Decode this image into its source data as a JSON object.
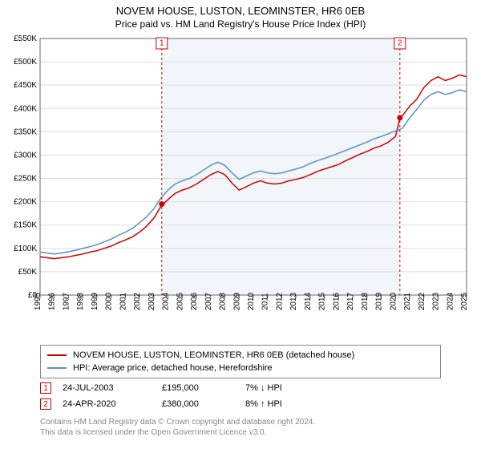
{
  "title_line1": "NOVEM HOUSE, LUSTON, LEOMINSTER, HR6 0EB",
  "title_line2": "Price paid vs. HM Land Registry's House Price Index (HPI)",
  "chart": {
    "type": "line",
    "background_color": "#ffffff",
    "plot_shaded_color": "#e8eef6",
    "grid_color": "#dddddd",
    "axis_color": "#666666",
    "x_axis": {
      "min_year": 1995,
      "max_year": 2025,
      "tick_years": [
        1995,
        1996,
        1997,
        1998,
        1999,
        2000,
        2001,
        2002,
        2003,
        2004,
        2005,
        2006,
        2007,
        2008,
        2009,
        2010,
        2011,
        2012,
        2013,
        2014,
        2015,
        2016,
        2017,
        2018,
        2019,
        2020,
        2021,
        2022,
        2023,
        2024,
        2025
      ],
      "tick_fontsize": 10,
      "label_rotation": -90
    },
    "y_axis": {
      "min": 0,
      "max": 550000,
      "tick_step": 50000,
      "tick_labels": [
        "£0",
        "£50K",
        "£100K",
        "£150K",
        "£200K",
        "£250K",
        "£300K",
        "£350K",
        "£400K",
        "£450K",
        "£500K",
        "£550K"
      ],
      "tick_fontsize": 10
    },
    "series": [
      {
        "name": "NOVEM HOUSE, LUSTON, LEOMINSTER, HR6 0EB (detached house)",
        "color": "#cc0000",
        "line_width": 1.5,
        "points": [
          [
            1995.0,
            82000
          ],
          [
            1995.5,
            80000
          ],
          [
            1996.0,
            78000
          ],
          [
            1996.5,
            80000
          ],
          [
            1997.0,
            82000
          ],
          [
            1997.5,
            85000
          ],
          [
            1998.0,
            88000
          ],
          [
            1998.5,
            92000
          ],
          [
            1999.0,
            95000
          ],
          [
            1999.5,
            100000
          ],
          [
            2000.0,
            105000
          ],
          [
            2000.5,
            112000
          ],
          [
            2001.0,
            118000
          ],
          [
            2001.5,
            125000
          ],
          [
            2002.0,
            135000
          ],
          [
            2002.5,
            148000
          ],
          [
            2003.0,
            165000
          ],
          [
            2003.5,
            190000
          ],
          [
            2004.0,
            205000
          ],
          [
            2004.5,
            218000
          ],
          [
            2005.0,
            225000
          ],
          [
            2005.5,
            230000
          ],
          [
            2006.0,
            238000
          ],
          [
            2006.5,
            248000
          ],
          [
            2007.0,
            258000
          ],
          [
            2007.5,
            265000
          ],
          [
            2008.0,
            258000
          ],
          [
            2008.5,
            240000
          ],
          [
            2009.0,
            225000
          ],
          [
            2009.5,
            232000
          ],
          [
            2010.0,
            240000
          ],
          [
            2010.5,
            245000
          ],
          [
            2011.0,
            240000
          ],
          [
            2011.5,
            238000
          ],
          [
            2012.0,
            240000
          ],
          [
            2012.5,
            245000
          ],
          [
            2013.0,
            248000
          ],
          [
            2013.5,
            252000
          ],
          [
            2014.0,
            258000
          ],
          [
            2014.5,
            265000
          ],
          [
            2015.0,
            270000
          ],
          [
            2015.5,
            275000
          ],
          [
            2016.0,
            280000
          ],
          [
            2016.5,
            288000
          ],
          [
            2017.0,
            295000
          ],
          [
            2017.5,
            302000
          ],
          [
            2018.0,
            308000
          ],
          [
            2018.5,
            315000
          ],
          [
            2019.0,
            320000
          ],
          [
            2019.5,
            328000
          ],
          [
            2020.0,
            340000
          ],
          [
            2020.3,
            378000
          ],
          [
            2020.5,
            385000
          ],
          [
            2021.0,
            405000
          ],
          [
            2021.5,
            420000
          ],
          [
            2022.0,
            445000
          ],
          [
            2022.5,
            460000
          ],
          [
            2023.0,
            468000
          ],
          [
            2023.5,
            460000
          ],
          [
            2024.0,
            465000
          ],
          [
            2024.5,
            472000
          ],
          [
            2025.0,
            468000
          ]
        ]
      },
      {
        "name": "HPI: Average price, detached house, Herefordshire",
        "color": "#5b8fc7",
        "line_width": 1.5,
        "points": [
          [
            1995.0,
            92000
          ],
          [
            1995.5,
            90000
          ],
          [
            1996.0,
            88000
          ],
          [
            1996.5,
            90000
          ],
          [
            1997.0,
            93000
          ],
          [
            1997.5,
            96000
          ],
          [
            1998.0,
            100000
          ],
          [
            1998.5,
            104000
          ],
          [
            1999.0,
            108000
          ],
          [
            1999.5,
            114000
          ],
          [
            2000.0,
            120000
          ],
          [
            2000.5,
            128000
          ],
          [
            2001.0,
            135000
          ],
          [
            2001.5,
            143000
          ],
          [
            2002.0,
            155000
          ],
          [
            2002.5,
            168000
          ],
          [
            2003.0,
            185000
          ],
          [
            2003.5,
            208000
          ],
          [
            2004.0,
            225000
          ],
          [
            2004.5,
            238000
          ],
          [
            2005.0,
            245000
          ],
          [
            2005.5,
            250000
          ],
          [
            2006.0,
            258000
          ],
          [
            2006.5,
            268000
          ],
          [
            2007.0,
            278000
          ],
          [
            2007.5,
            285000
          ],
          [
            2008.0,
            278000
          ],
          [
            2008.5,
            262000
          ],
          [
            2009.0,
            248000
          ],
          [
            2009.5,
            255000
          ],
          [
            2010.0,
            262000
          ],
          [
            2010.5,
            266000
          ],
          [
            2011.0,
            262000
          ],
          [
            2011.5,
            260000
          ],
          [
            2012.0,
            262000
          ],
          [
            2012.5,
            266000
          ],
          [
            2013.0,
            270000
          ],
          [
            2013.5,
            275000
          ],
          [
            2014.0,
            282000
          ],
          [
            2014.5,
            288000
          ],
          [
            2015.0,
            293000
          ],
          [
            2015.5,
            298000
          ],
          [
            2016.0,
            304000
          ],
          [
            2016.5,
            310000
          ],
          [
            2017.0,
            316000
          ],
          [
            2017.5,
            322000
          ],
          [
            2018.0,
            328000
          ],
          [
            2018.5,
            335000
          ],
          [
            2019.0,
            340000
          ],
          [
            2019.5,
            346000
          ],
          [
            2020.0,
            352000
          ],
          [
            2020.3,
            355000
          ],
          [
            2020.5,
            358000
          ],
          [
            2021.0,
            380000
          ],
          [
            2021.5,
            398000
          ],
          [
            2022.0,
            418000
          ],
          [
            2022.5,
            430000
          ],
          [
            2023.0,
            436000
          ],
          [
            2023.5,
            430000
          ],
          [
            2024.0,
            434000
          ],
          [
            2024.5,
            440000
          ],
          [
            2025.0,
            436000
          ]
        ]
      }
    ],
    "sale_markers": [
      {
        "id": "1",
        "year": 2003.56,
        "price": 195000
      },
      {
        "id": "2",
        "year": 2020.31,
        "price": 380000
      }
    ],
    "marker_box_size": 14,
    "marker_color": "#cc0000",
    "marker_dot_radius": 3.5
  },
  "legend": {
    "border_color": "#888888",
    "items": [
      {
        "color": "#cc0000",
        "label": "NOVEM HOUSE, LUSTON, LEOMINSTER, HR6 0EB (detached house)"
      },
      {
        "color": "#5b8fc7",
        "label": "HPI: Average price, detached house, Herefordshire"
      }
    ]
  },
  "price_rows": [
    {
      "marker": "1",
      "date": "24-JUL-2003",
      "price": "£195,000",
      "delta": "7% ↓ HPI"
    },
    {
      "marker": "2",
      "date": "24-APR-2020",
      "price": "£380,000",
      "delta": "8% ↑ HPI"
    }
  ],
  "attribution_line1": "Contains HM Land Registry data © Crown copyright and database right 2024.",
  "attribution_line2": "This data is licensed under the Open Government Licence v3.0."
}
